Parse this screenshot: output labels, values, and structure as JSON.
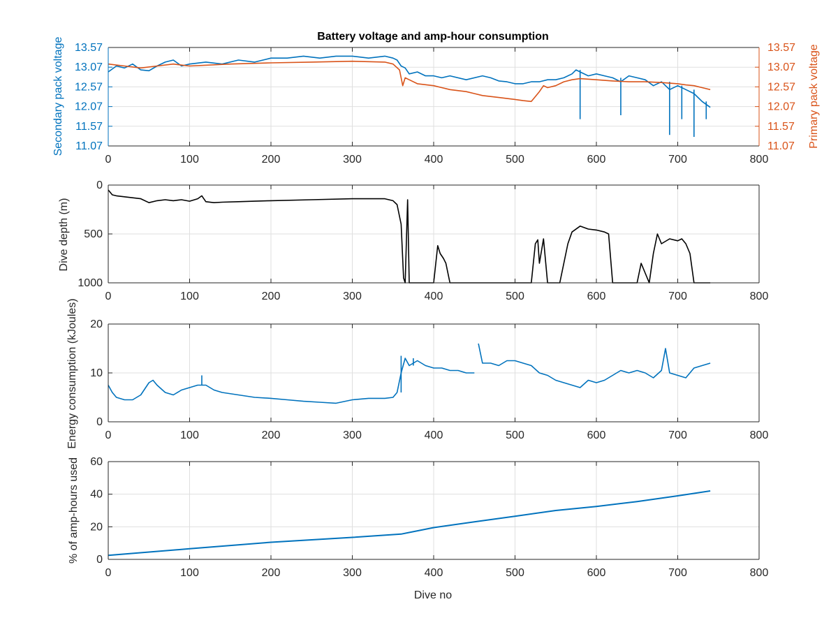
{
  "colors": {
    "blue": "#0072BD",
    "orange": "#D95319",
    "black": "#000000",
    "grid": "#DFDFDF",
    "axis": "#262626"
  },
  "chart_data": [
    {
      "type": "line",
      "title": "Battery voltage and amp-hour consumption",
      "xlabel": "",
      "ylabel_left": "Secondary pack voltage",
      "ylabel_right": "Primary pack voltage",
      "xlim": [
        0,
        800
      ],
      "ylim": [
        11.07,
        13.57
      ],
      "xticks": [
        "0",
        "100",
        "200",
        "300",
        "400",
        "500",
        "600",
        "700",
        "800"
      ],
      "yticks": [
        "11.07",
        "11.57",
        "12.07",
        "12.57",
        "13.07",
        "13.57"
      ],
      "grid": true,
      "series": [
        {
          "axis": "left",
          "color": "blue",
          "x": [
            0,
            10,
            20,
            30,
            40,
            50,
            60,
            70,
            80,
            90,
            100,
            120,
            140,
            160,
            180,
            200,
            220,
            240,
            260,
            280,
            300,
            320,
            340,
            350,
            355,
            360,
            365,
            370,
            380,
            390,
            400,
            410,
            420,
            440,
            460,
            470,
            480,
            490,
            500,
            510,
            520,
            530,
            540,
            550,
            560,
            570,
            575,
            580,
            590,
            600,
            610,
            620,
            630,
            640,
            650,
            660,
            670,
            680,
            690,
            700,
            710,
            720,
            730,
            740
          ],
          "y": [
            12.95,
            13.1,
            13.05,
            13.15,
            13.0,
            12.98,
            13.1,
            13.2,
            13.25,
            13.1,
            13.15,
            13.2,
            13.15,
            13.25,
            13.2,
            13.3,
            13.3,
            13.35,
            13.3,
            13.35,
            13.35,
            13.3,
            13.35,
            13.3,
            13.25,
            13.1,
            13.05,
            12.9,
            12.95,
            12.85,
            12.85,
            12.8,
            12.85,
            12.75,
            12.85,
            12.8,
            12.72,
            12.7,
            12.65,
            12.65,
            12.7,
            12.7,
            12.75,
            12.75,
            12.8,
            12.9,
            13.0,
            12.95,
            12.85,
            12.9,
            12.85,
            12.8,
            12.7,
            12.85,
            12.8,
            12.75,
            12.6,
            12.7,
            12.5,
            12.6,
            12.5,
            12.4,
            12.2,
            12.05
          ],
          "ymin_spikes": [
            [
              580,
              11.75
            ],
            [
              630,
              11.85
            ],
            [
              690,
              11.35
            ],
            [
              705,
              11.75
            ],
            [
              720,
              11.3
            ],
            [
              735,
              11.75
            ]
          ]
        },
        {
          "axis": "right",
          "color": "orange",
          "x": [
            0,
            20,
            40,
            60,
            80,
            100,
            150,
            200,
            250,
            300,
            340,
            350,
            358,
            362,
            365,
            370,
            380,
            400,
            410,
            420,
            440,
            450,
            460,
            480,
            500,
            510,
            520,
            530,
            535,
            540,
            550,
            560,
            570,
            580,
            600,
            620,
            640,
            660,
            680,
            700,
            710,
            720,
            730,
            740
          ],
          "y": [
            13.15,
            13.1,
            13.05,
            13.1,
            13.15,
            13.1,
            13.15,
            13.18,
            13.2,
            13.22,
            13.2,
            13.15,
            13.0,
            12.6,
            12.8,
            12.75,
            12.65,
            12.6,
            12.55,
            12.5,
            12.45,
            12.4,
            12.35,
            12.3,
            12.25,
            12.22,
            12.2,
            12.45,
            12.6,
            12.55,
            12.6,
            12.7,
            12.75,
            12.78,
            12.75,
            12.72,
            12.7,
            12.7,
            12.68,
            12.65,
            12.62,
            12.6,
            12.55,
            12.5
          ]
        }
      ]
    },
    {
      "type": "line",
      "xlabel": "",
      "ylabel": "Dive depth (m)",
      "xlim": [
        0,
        800
      ],
      "ylim": [
        0,
        1000
      ],
      "y_reversed": true,
      "xticks": [
        "0",
        "100",
        "200",
        "300",
        "400",
        "500",
        "600",
        "700",
        "800"
      ],
      "yticks": [
        "0",
        "500",
        "1000"
      ],
      "grid": true,
      "series": [
        {
          "color": "black",
          "x": [
            0,
            5,
            10,
            20,
            30,
            40,
            50,
            60,
            70,
            80,
            90,
            100,
            110,
            115,
            120,
            130,
            140,
            160,
            180,
            200,
            250,
            300,
            340,
            350,
            355,
            360,
            363,
            365,
            368,
            370,
            380,
            400,
            405,
            408,
            412,
            415,
            420,
            450,
            500,
            520,
            525,
            528,
            530,
            535,
            540,
            550,
            555,
            560,
            565,
            570,
            580,
            590,
            600,
            610,
            615,
            620,
            640,
            650,
            655,
            660,
            665,
            670,
            675,
            680,
            690,
            700,
            705,
            710,
            715,
            720,
            740
          ],
          "y": [
            50,
            100,
            110,
            120,
            130,
            140,
            180,
            160,
            150,
            160,
            150,
            165,
            140,
            110,
            170,
            180,
            175,
            170,
            165,
            160,
            150,
            140,
            140,
            160,
            200,
            400,
            950,
            1000,
            150,
            1000,
            1000,
            1000,
            620,
            700,
            750,
            800,
            1000,
            1000,
            1000,
            1000,
            600,
            560,
            800,
            550,
            1000,
            1000,
            1000,
            800,
            600,
            480,
            420,
            450,
            460,
            480,
            500,
            1000,
            1000,
            1000,
            800,
            900,
            1000,
            700,
            500,
            600,
            550,
            570,
            550,
            600,
            700,
            1000,
            1000
          ]
        }
      ]
    },
    {
      "type": "line",
      "xlabel": "",
      "ylabel": "Energy consumption (kJoules)",
      "xlim": [
        0,
        800
      ],
      "ylim": [
        0,
        20
      ],
      "xticks": [
        "0",
        "100",
        "200",
        "300",
        "400",
        "500",
        "600",
        "700",
        "800"
      ],
      "yticks": [
        "0",
        "10",
        "20"
      ],
      "grid": true,
      "series": [
        {
          "color": "blue",
          "x": [
            0,
            5,
            10,
            20,
            30,
            40,
            50,
            55,
            60,
            70,
            80,
            90,
            100,
            110,
            120,
            130,
            140,
            160,
            180,
            200,
            220,
            240,
            260,
            280,
            300,
            320,
            340,
            350,
            355,
            360,
            365,
            370,
            380,
            390,
            400,
            410,
            420,
            430,
            440,
            450
          ],
          "y": [
            7.5,
            6.0,
            5.0,
            4.5,
            4.5,
            5.5,
            8.0,
            8.5,
            7.5,
            6.0,
            5.5,
            6.5,
            7.0,
            7.5,
            7.5,
            6.5,
            6.0,
            5.5,
            5.0,
            4.8,
            4.5,
            4.2,
            4.0,
            3.8,
            4.5,
            4.8,
            4.8,
            5.0,
            6.0,
            10.0,
            13.0,
            11.5,
            12.5,
            11.5,
            11.0,
            11.0,
            10.5,
            10.5,
            10.0,
            10.0
          ],
          "max_spikes": [
            [
              115,
              9.5
            ],
            [
              360,
              13.5
            ],
            [
              375,
              13.0
            ]
          ]
        },
        {
          "color": "blue",
          "x": [
            455,
            460,
            470,
            480,
            490,
            500,
            510,
            520,
            530,
            540,
            550,
            560,
            570,
            580,
            590,
            600,
            610,
            620,
            630,
            640,
            650,
            660,
            670,
            680,
            685,
            690,
            700,
            710,
            720,
            730,
            740
          ],
          "y": [
            16.0,
            12.0,
            12.0,
            11.5,
            12.5,
            12.5,
            12.0,
            11.5,
            10.0,
            9.5,
            8.5,
            8.0,
            7.5,
            7.0,
            8.5,
            8.0,
            8.5,
            9.5,
            10.5,
            10.0,
            10.5,
            10.0,
            9.0,
            10.5,
            15.0,
            10.0,
            9.5,
            9.0,
            11.0,
            11.5,
            12.0
          ]
        }
      ]
    },
    {
      "type": "line",
      "xlabel": "Dive no",
      "ylabel": "% of amp-hours used",
      "xlim": [
        0,
        800
      ],
      "ylim": [
        0,
        60
      ],
      "xticks": [
        "0",
        "100",
        "200",
        "300",
        "400",
        "500",
        "600",
        "700",
        "800"
      ],
      "yticks": [
        "0",
        "20",
        "40",
        "60"
      ],
      "grid": true,
      "series": [
        {
          "color": "blue",
          "x": [
            0,
            100,
            200,
            300,
            360,
            400,
            450,
            500,
            550,
            600,
            650,
            700,
            740
          ],
          "y": [
            2.5,
            6.5,
            10.5,
            13.5,
            15.5,
            19.5,
            23.0,
            26.5,
            30.0,
            32.5,
            35.5,
            39.0,
            42.0
          ]
        }
      ]
    }
  ]
}
